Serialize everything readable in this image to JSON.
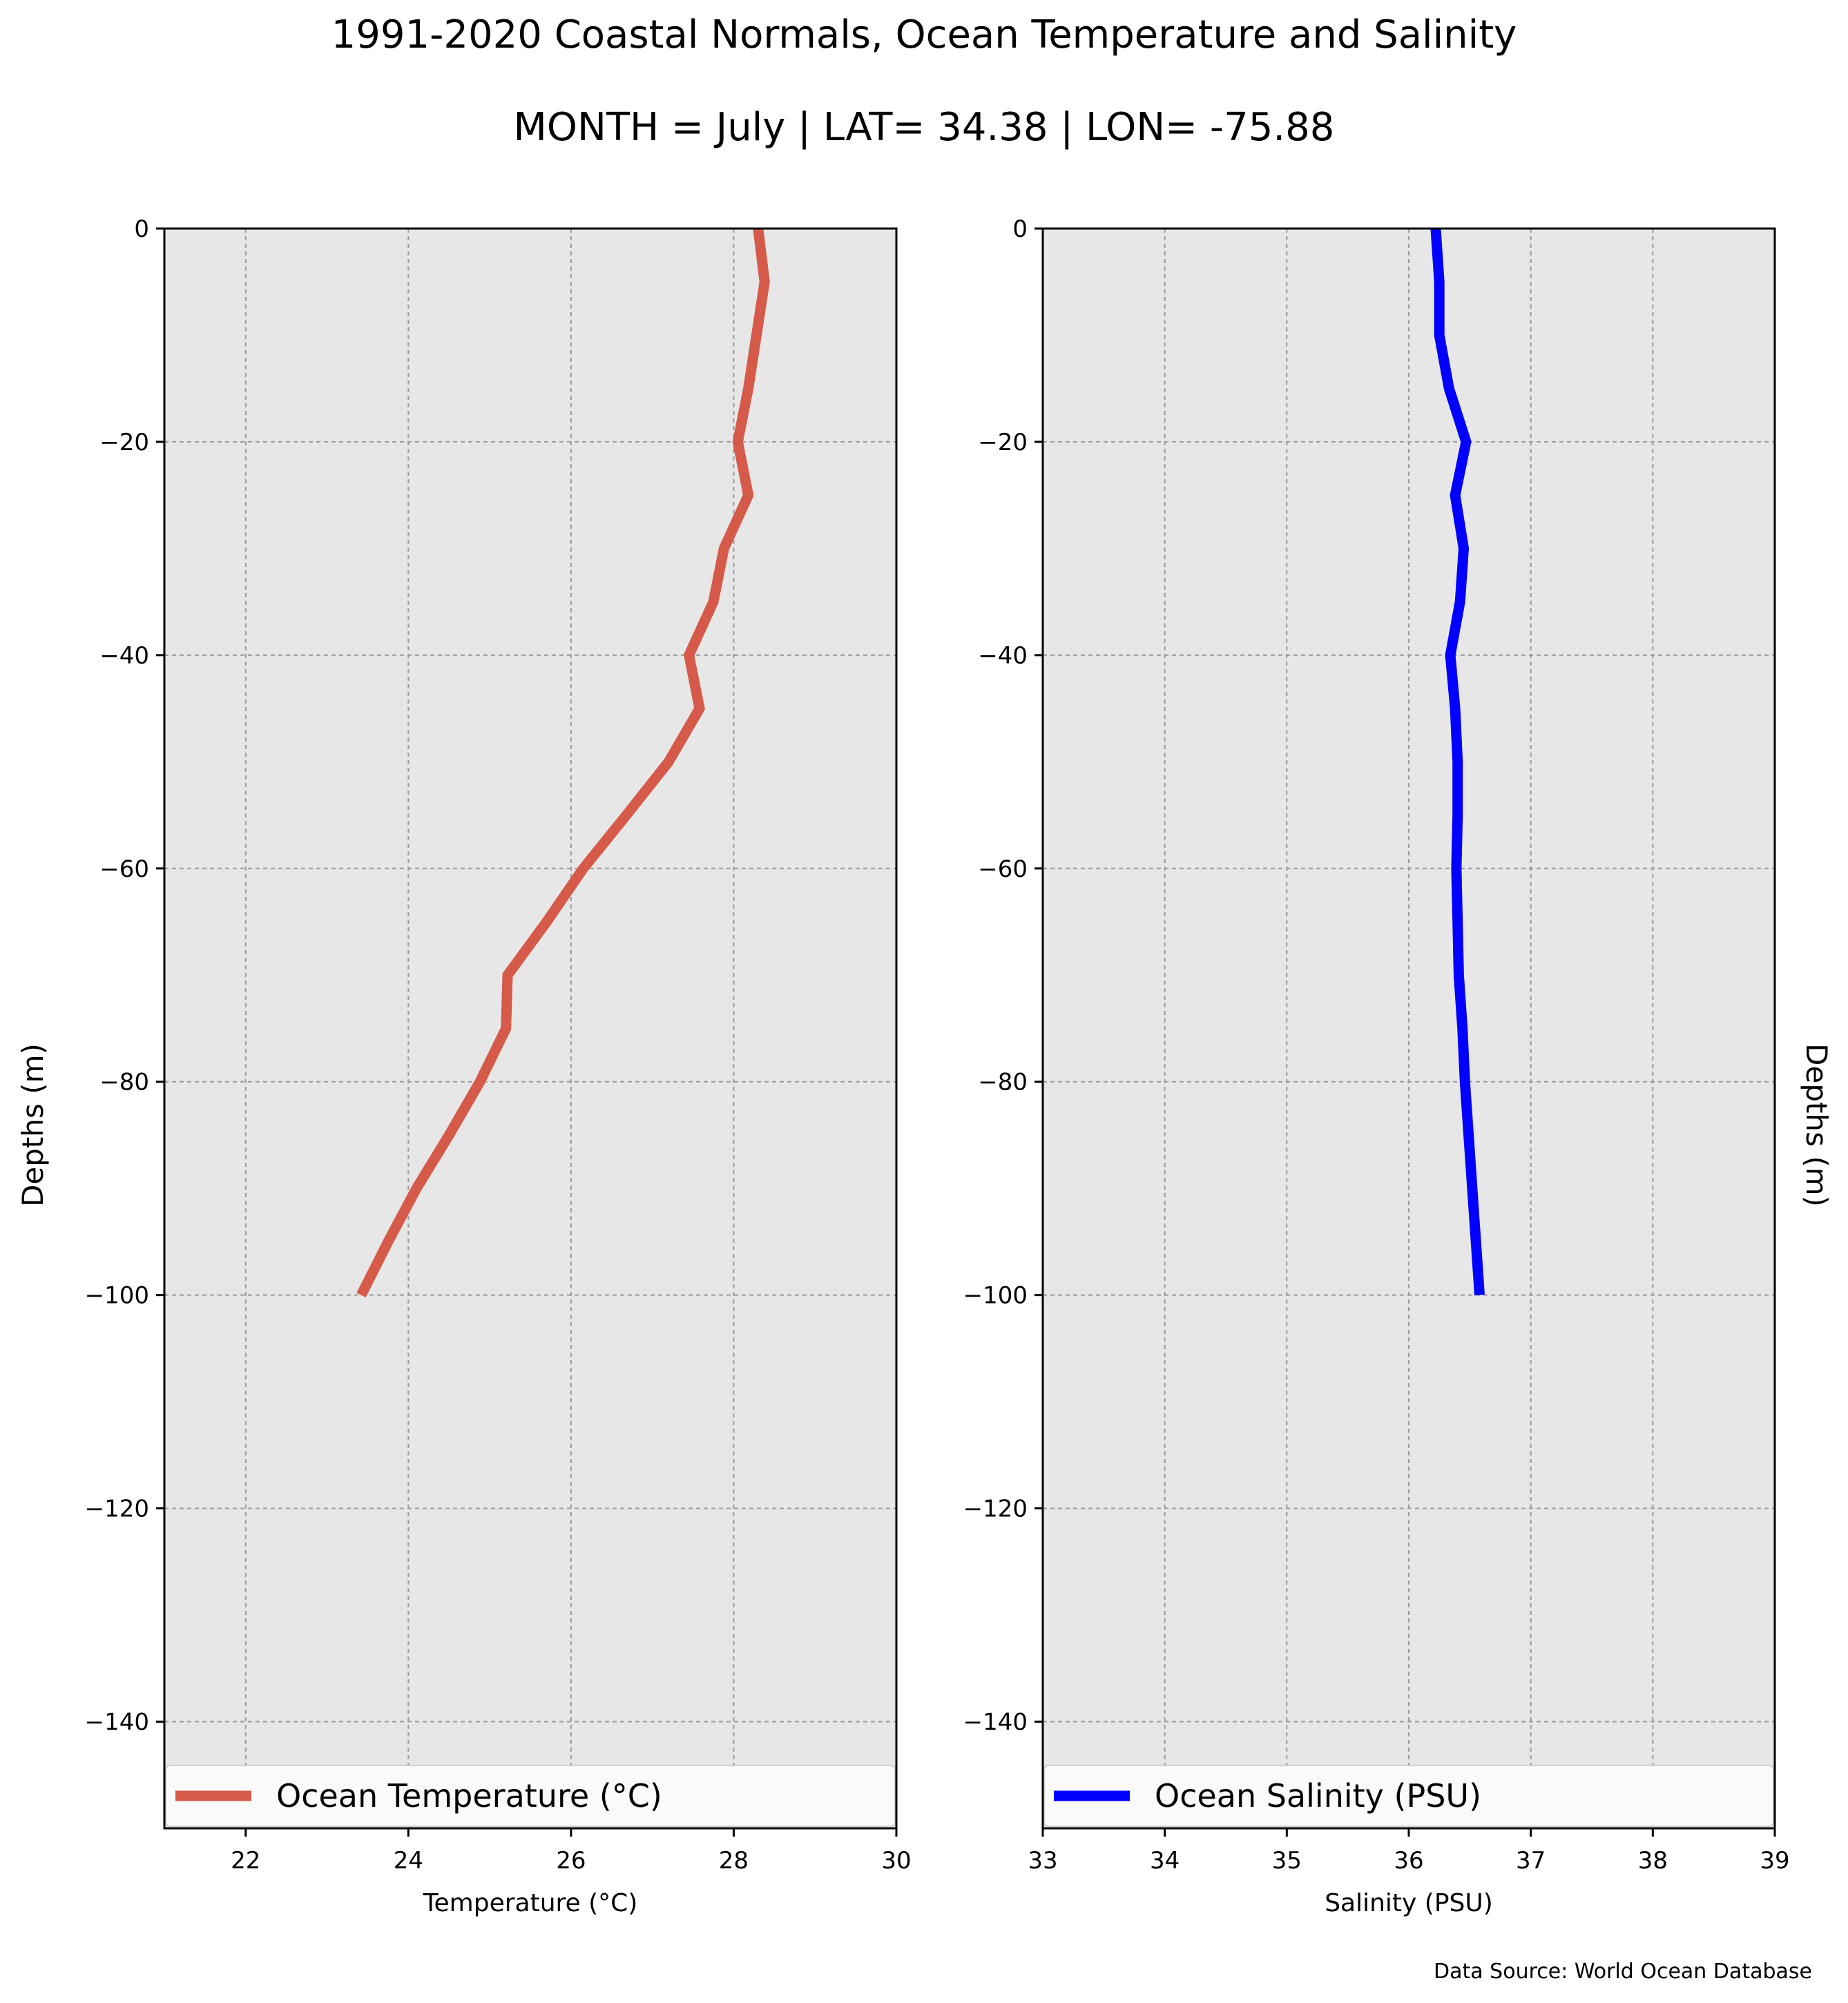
{
  "title": "1991-2020 Coastal Normals, Ocean Temperature and Salinity",
  "subtitle": "MONTH = July | LAT= 34.38 | LON= -75.88",
  "source": "Data Source: World Ocean Database",
  "chart_data": [
    {
      "type": "line",
      "orientation": "vertical-profile",
      "xlabel": "Temperature (°C)",
      "ylabel": "Depths (m)",
      "xlim": [
        21,
        30
      ],
      "ylim": [
        -150,
        0
      ],
      "xticks": [
        22,
        24,
        26,
        28,
        30
      ],
      "yticks": [
        0,
        -20,
        -40,
        -60,
        -80,
        -100,
        -120,
        -140
      ],
      "grid": true,
      "legend": "bottom",
      "color": "#d65a4a",
      "background": "#e7e7e7",
      "series": [
        {
          "name": "Ocean Temperature (°C)",
          "x": [
            28.3,
            28.38,
            28.28,
            28.18,
            28.05,
            28.18,
            27.88,
            27.75,
            27.45,
            27.58,
            27.2,
            26.68,
            26.15,
            25.7,
            25.22,
            25.2,
            24.88,
            24.5,
            24.1,
            23.75,
            23.42
          ],
          "y": [
            0,
            -5,
            -10,
            -15,
            -20,
            -25,
            -30,
            -35,
            -40,
            -45,
            -50,
            -55,
            -60,
            -65,
            -70,
            -75,
            -80,
            -85,
            -90,
            -95,
            -100
          ]
        }
      ]
    },
    {
      "type": "line",
      "orientation": "vertical-profile",
      "xlabel": "Salinity (PSU)",
      "ylabel": "Depths (m)",
      "xlim": [
        33,
        39
      ],
      "ylim": [
        -150,
        0
      ],
      "xticks": [
        33,
        34,
        35,
        36,
        37,
        38,
        39
      ],
      "yticks": [
        0,
        -20,
        -40,
        -60,
        -80,
        -100,
        -120,
        -140
      ],
      "grid": true,
      "legend": "bottom",
      "color": "#0000ff",
      "background": "#e7e7e7",
      "series": [
        {
          "name": "Ocean Salinity (PSU)",
          "x": [
            36.22,
            36.25,
            36.25,
            36.33,
            36.47,
            36.38,
            36.45,
            36.42,
            36.34,
            36.38,
            36.4,
            36.4,
            36.39,
            36.4,
            36.41,
            36.44,
            36.46,
            36.49,
            36.52,
            36.55,
            36.58
          ],
          "y": [
            0,
            -5,
            -10,
            -15,
            -20,
            -25,
            -30,
            -35,
            -40,
            -45,
            -50,
            -55,
            -60,
            -65,
            -70,
            -75,
            -80,
            -85,
            -90,
            -95,
            -100
          ]
        }
      ]
    }
  ]
}
